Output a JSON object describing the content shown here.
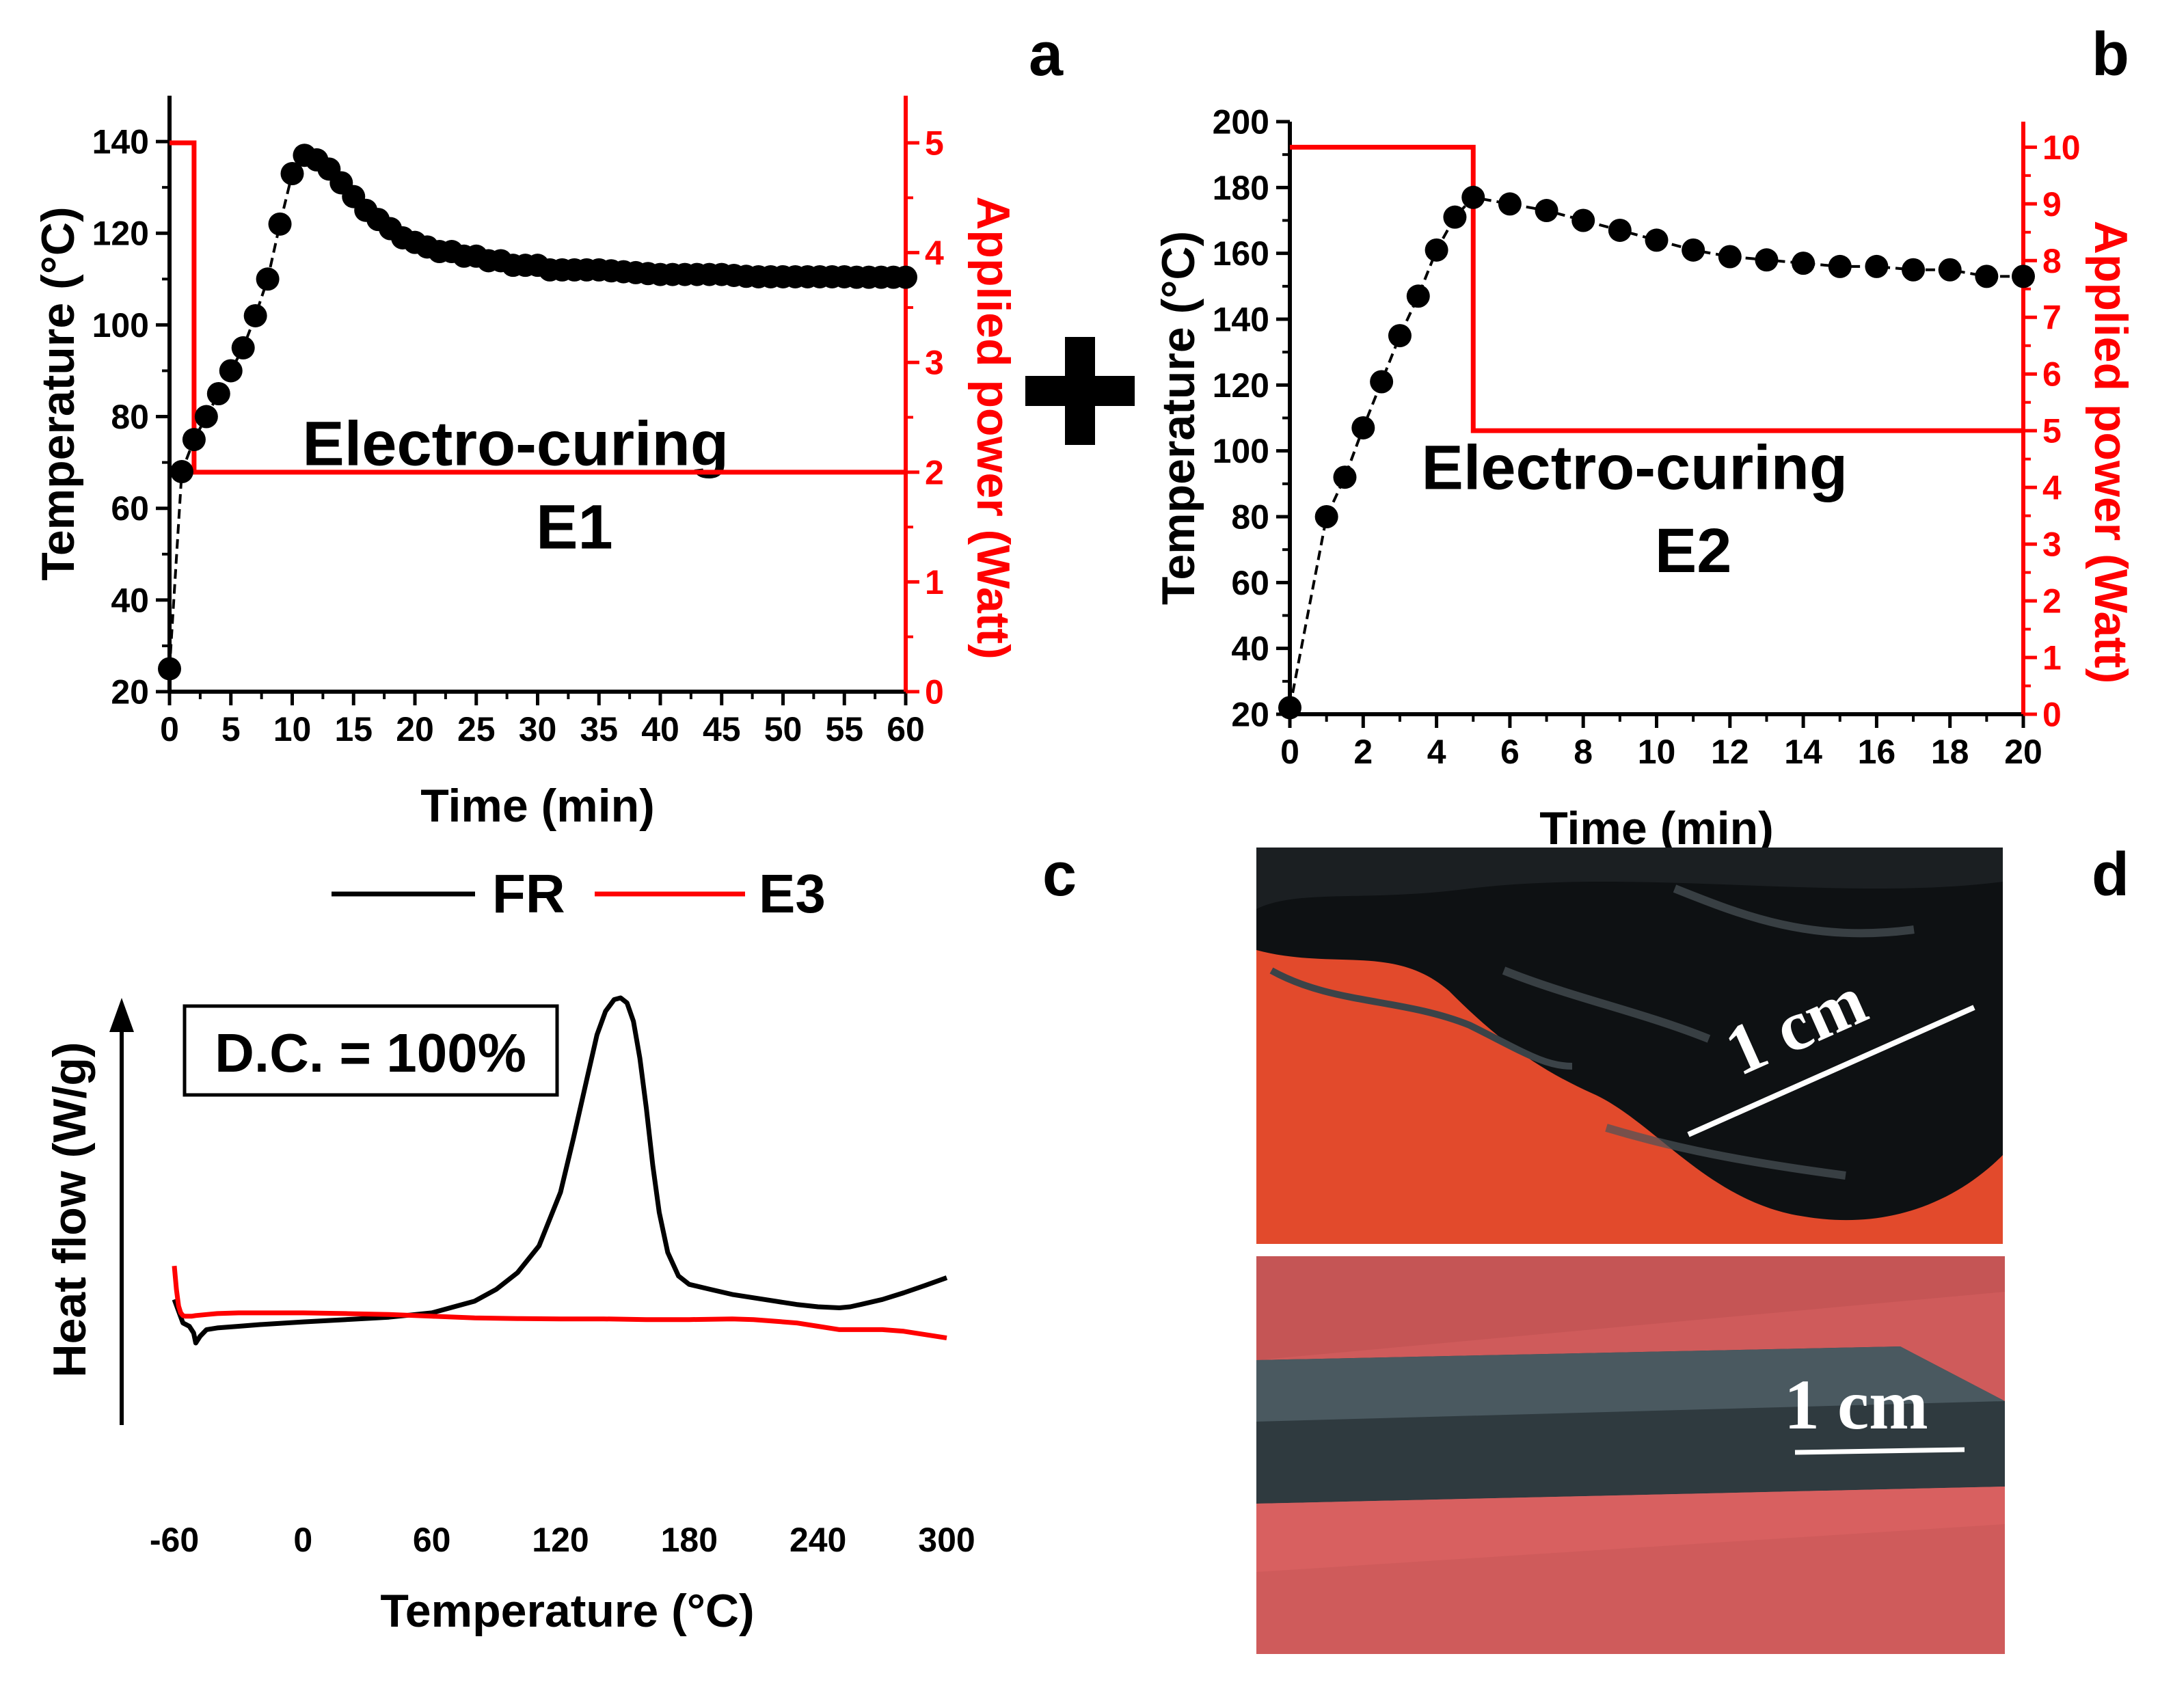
{
  "panel_labels": {
    "a": "a",
    "b": "b",
    "c": "c",
    "d": "d"
  },
  "colors": {
    "temp": "#000000",
    "power": "#ff0000",
    "fr": "#000000",
    "e3": "#ff0000",
    "photo_bg1": "#e0472e",
    "photo_bg2": "#d06060",
    "sample": "#2b3336"
  },
  "plus_symbol": "✚",
  "chart_data": [
    {
      "id": "a",
      "type": "line",
      "title": "Electro-curing",
      "title_line2": "E1",
      "xlabel": "Time (min)",
      "ylabel": "Temperature (°C)",
      "ylabel_right": "Applied power (Watt)",
      "xlim": [
        0,
        60
      ],
      "ylim": [
        20,
        150
      ],
      "ylim_right": [
        0,
        5.43
      ],
      "xticks": [
        0,
        5,
        10,
        15,
        20,
        25,
        30,
        35,
        40,
        45,
        50,
        55,
        60
      ],
      "yticks": [
        20,
        40,
        60,
        80,
        100,
        120,
        140
      ],
      "yticks_right": [
        0,
        1,
        2,
        3,
        4,
        5
      ],
      "series": [
        {
          "name": "Temperature",
          "axis": "left",
          "marker": "circle",
          "x": [
            0,
            1,
            2,
            3,
            4,
            5,
            6,
            7,
            8,
            9,
            10,
            11,
            12,
            13,
            14,
            15,
            16,
            17,
            18,
            19,
            20,
            21,
            22,
            23,
            24,
            25,
            26,
            27,
            28,
            29,
            30,
            31,
            32,
            33,
            34,
            35,
            36,
            37,
            38,
            39,
            40,
            41,
            42,
            43,
            44,
            45,
            46,
            47,
            48,
            49,
            50,
            51,
            52,
            53,
            54,
            55,
            56,
            57,
            58,
            59,
            60
          ],
          "y": [
            25,
            68,
            75,
            80,
            85,
            90,
            95,
            102,
            110,
            122,
            133,
            137,
            136,
            134,
            131,
            128,
            125,
            123,
            121,
            119,
            118,
            117,
            116,
            116,
            115,
            115,
            114,
            114,
            113,
            113,
            113,
            112,
            112,
            112,
            112,
            112,
            111.8,
            111.6,
            111.4,
            111.2,
            111,
            111,
            111,
            111,
            111,
            111,
            110.8,
            110.6,
            110.5,
            110.5,
            110.5,
            110.5,
            110.5,
            110.5,
            110.5,
            110.5,
            110.4,
            110.4,
            110.4,
            110.4,
            110.4
          ]
        },
        {
          "name": "Applied power",
          "axis": "right",
          "type": "step",
          "x": [
            0,
            2,
            2,
            60
          ],
          "y": [
            5,
            5,
            2,
            2
          ]
        }
      ]
    },
    {
      "id": "b",
      "type": "line",
      "title": "Electro-curing",
      "title_line2": "E2",
      "xlabel": "Time (min)",
      "ylabel": "Temperature (°C)",
      "ylabel_right": "Applied power (Watt)",
      "xlim": [
        0,
        20
      ],
      "ylim": [
        20,
        200
      ],
      "ylim_right": [
        0,
        10.45
      ],
      "xticks": [
        0,
        2,
        4,
        6,
        8,
        10,
        12,
        14,
        16,
        18,
        20
      ],
      "yticks": [
        20,
        40,
        60,
        80,
        100,
        120,
        140,
        160,
        180,
        200
      ],
      "yticks_right": [
        0,
        1,
        2,
        3,
        4,
        5,
        6,
        7,
        8,
        9,
        10
      ],
      "series": [
        {
          "name": "Temperature",
          "axis": "left",
          "marker": "circle",
          "x": [
            0,
            1,
            1.5,
            2,
            2.5,
            3,
            3.5,
            4,
            4.5,
            5,
            6,
            7,
            8,
            9,
            10,
            11,
            12,
            13,
            14,
            15,
            16,
            17,
            18,
            19,
            20
          ],
          "y": [
            22,
            80,
            92,
            107,
            121,
            135,
            147,
            161,
            171,
            177,
            175,
            173,
            170,
            167,
            164,
            161,
            159,
            158,
            157,
            156,
            156,
            155,
            155,
            153,
            153
          ]
        },
        {
          "name": "Applied power",
          "axis": "right",
          "type": "step",
          "x": [
            0,
            5,
            5,
            20
          ],
          "y": [
            10,
            10,
            5,
            5
          ]
        }
      ]
    },
    {
      "id": "c",
      "type": "line",
      "xlabel": "Temperature (°C)",
      "ylabel": "Heat flow (W/g)",
      "xlim": [
        -60,
        300
      ],
      "xticks": [
        -60,
        0,
        60,
        120,
        180,
        240,
        300
      ],
      "annotation": "D.C. = 100%",
      "legend": [
        "FR",
        "E3"
      ],
      "series": [
        {
          "name": "FR",
          "x": [
            -60,
            -56,
            -53,
            -51,
            -50,
            -48,
            -45,
            -40,
            -30,
            -20,
            0,
            20,
            40,
            60,
            80,
            90,
            100,
            110,
            120,
            126,
            132,
            137,
            141,
            145,
            148,
            151,
            154,
            157,
            160,
            163,
            166,
            170,
            175,
            180,
            190,
            200,
            210,
            220,
            230,
            240,
            250,
            255,
            260,
            270,
            280,
            290,
            300
          ],
          "y": [
            1.0,
            0.3,
            0.2,
            0.0,
            -0.3,
            -0.1,
            0.1,
            0.15,
            0.2,
            0.25,
            0.33,
            0.4,
            0.47,
            0.6,
            0.95,
            1.3,
            1.8,
            2.6,
            4.2,
            5.8,
            7.5,
            8.9,
            9.6,
            9.95,
            10.0,
            9.85,
            9.3,
            8.2,
            6.7,
            5.0,
            3.6,
            2.4,
            1.7,
            1.45,
            1.3,
            1.15,
            1.05,
            0.95,
            0.85,
            0.78,
            0.75,
            0.78,
            0.85,
            1.0,
            1.2,
            1.42,
            1.65
          ]
        },
        {
          "name": "E3",
          "x": [
            -60,
            -59,
            -58,
            -57,
            -56,
            -55,
            -54,
            -52,
            -50,
            -45,
            -40,
            -30,
            -20,
            -10,
            0,
            20,
            40,
            60,
            80,
            100,
            120,
            140,
            160,
            180,
            200,
            210,
            220,
            230,
            240,
            250,
            260,
            270,
            280,
            290,
            300
          ],
          "y": [
            2.0,
            1.3,
            0.8,
            0.6,
            0.52,
            0.5,
            0.5,
            0.5,
            0.52,
            0.55,
            0.58,
            0.6,
            0.6,
            0.6,
            0.6,
            0.58,
            0.55,
            0.5,
            0.45,
            0.43,
            0.42,
            0.42,
            0.4,
            0.4,
            0.42,
            0.4,
            0.35,
            0.3,
            0.2,
            0.1,
            0.1,
            0.1,
            0.05,
            -0.05,
            -0.15
          ]
        }
      ]
    }
  ],
  "photos": {
    "top": {
      "scale_label": "1 cm"
    },
    "bottom": {
      "scale_label": "1 cm"
    }
  }
}
